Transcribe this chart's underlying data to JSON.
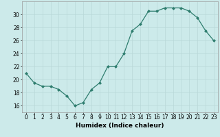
{
  "x": [
    0,
    1,
    2,
    3,
    4,
    5,
    6,
    7,
    8,
    9,
    10,
    11,
    12,
    13,
    14,
    15,
    16,
    17,
    18,
    19,
    20,
    21,
    22,
    23
  ],
  "y": [
    21,
    19.5,
    19,
    19,
    18.5,
    17.5,
    16,
    16.5,
    18.5,
    19.5,
    22,
    22,
    24,
    27.5,
    28.5,
    30.5,
    30.5,
    31,
    31,
    31,
    30.5,
    29.5,
    27.5,
    26
  ],
  "title": "",
  "xlabel": "Humidex (Indice chaleur)",
  "ylabel": "",
  "ylim": [
    15,
    32
  ],
  "yticks": [
    16,
    18,
    20,
    22,
    24,
    26,
    28,
    30
  ],
  "xlim": [
    -0.5,
    23.5
  ],
  "line_color": "#2e7d6e",
  "marker_color": "#2e7d6e",
  "bg_color": "#cceaea",
  "grid_color": "#b8d8d8",
  "label_fontsize": 6.5,
  "tick_fontsize": 5.5
}
